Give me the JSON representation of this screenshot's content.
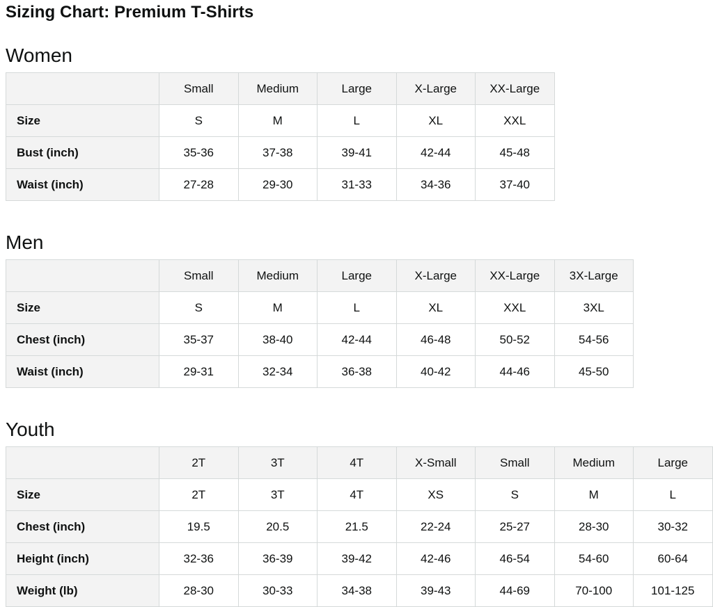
{
  "page_title": "Sizing Chart: Premium T-Shirts",
  "colors": {
    "header_background": "#f3f3f3",
    "cell_background": "#ffffff",
    "border": "#d5d9d9",
    "text": "#0f1111"
  },
  "sections": [
    {
      "heading": "Women",
      "columns": [
        "Small",
        "Medium",
        "Large",
        "X-Large",
        "XX-Large"
      ],
      "rows": [
        {
          "label": "Size",
          "values": [
            "S",
            "M",
            "L",
            "XL",
            "XXL"
          ]
        },
        {
          "label": "Bust (inch)",
          "values": [
            "35-36",
            "37-38",
            "39-41",
            "42-44",
            "45-48"
          ]
        },
        {
          "label": "Waist (inch)",
          "values": [
            "27-28",
            "29-30",
            "31-33",
            "34-36",
            "37-40"
          ]
        }
      ]
    },
    {
      "heading": "Men",
      "columns": [
        "Small",
        "Medium",
        "Large",
        "X-Large",
        "XX-Large",
        "3X-Large"
      ],
      "rows": [
        {
          "label": "Size",
          "values": [
            "S",
            "M",
            "L",
            "XL",
            "XXL",
            "3XL"
          ]
        },
        {
          "label": "Chest (inch)",
          "values": [
            "35-37",
            "38-40",
            "42-44",
            "46-48",
            "50-52",
            "54-56"
          ]
        },
        {
          "label": "Waist (inch)",
          "values": [
            "29-31",
            "32-34",
            "36-38",
            "40-42",
            "44-46",
            "45-50"
          ]
        }
      ]
    },
    {
      "heading": "Youth",
      "columns": [
        "2T",
        "3T",
        "4T",
        "X-Small",
        "Small",
        "Medium",
        "Large"
      ],
      "rows": [
        {
          "label": "Size",
          "values": [
            "2T",
            "3T",
            "4T",
            "XS",
            "S",
            "M",
            "L"
          ]
        },
        {
          "label": "Chest (inch)",
          "values": [
            "19.5",
            "20.5",
            "21.5",
            "22-24",
            "25-27",
            "28-30",
            "30-32"
          ]
        },
        {
          "label": "Height (inch)",
          "values": [
            "32-36",
            "36-39",
            "39-42",
            "42-46",
            "46-54",
            "54-60",
            "60-64"
          ]
        },
        {
          "label": "Weight (lb)",
          "values": [
            "28-30",
            "30-33",
            "34-38",
            "39-43",
            "44-69",
            "70-100",
            "101-125"
          ]
        }
      ]
    }
  ]
}
